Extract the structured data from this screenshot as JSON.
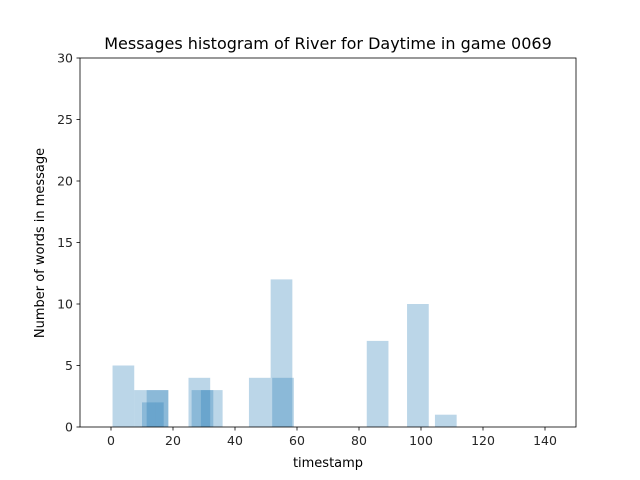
{
  "chart_data": {
    "type": "bar",
    "title": "Messages histogram of River for Daytime in game 0069",
    "xlabel": "timestamp",
    "ylabel": "Number of words in message",
    "xlim": [
      -10,
      150
    ],
    "ylim": [
      0,
      30
    ],
    "xticks": [
      0,
      20,
      40,
      60,
      80,
      100,
      120,
      140
    ],
    "yticks": [
      0,
      5,
      10,
      15,
      20,
      25,
      30
    ],
    "grid": false,
    "bar_color": "#1f77b4",
    "bar_opacity": 0.3,
    "bars": [
      {
        "x": 0.5,
        "width": 7,
        "value": 5
      },
      {
        "x": 7.5,
        "width": 7,
        "value": 3
      },
      {
        "x": 10,
        "width": 7,
        "value": 2
      },
      {
        "x": 11.5,
        "width": 7,
        "value": 3
      },
      {
        "x": 14.5,
        "width": 4,
        "value": 3
      },
      {
        "x": 25,
        "width": 7,
        "value": 4
      },
      {
        "x": 26,
        "width": 7,
        "value": 3
      },
      {
        "x": 29,
        "width": 7,
        "value": 3
      },
      {
        "x": 44.5,
        "width": 7,
        "value": 4
      },
      {
        "x": 51.5,
        "width": 7,
        "value": 12
      },
      {
        "x": 52,
        "width": 7,
        "value": 4
      },
      {
        "x": 82.5,
        "width": 7,
        "value": 7
      },
      {
        "x": 95.5,
        "width": 7,
        "value": 10
      },
      {
        "x": 104.5,
        "width": 7,
        "value": 1
      }
    ]
  }
}
